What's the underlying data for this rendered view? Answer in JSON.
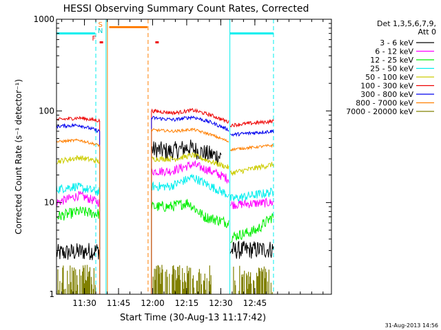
{
  "chart_data": {
    "type": "line",
    "title": "HESSI Observing Summary Count Rates, Corrected",
    "xlabel": "Start Time (30-Aug-13 11:17:42)",
    "ylabel": "Corrected Count Rate (s⁻¹ detector⁻¹)",
    "footer": "31-Aug-2013 14:56",
    "y_scale": "log",
    "ylim": [
      1,
      1000
    ],
    "x_range_min": [
      0,
      121
    ],
    "x_ticks": [
      {
        "at": 12.3,
        "label": "11:30"
      },
      {
        "at": 27.3,
        "label": "11:45"
      },
      {
        "at": 42.3,
        "label": "12:00"
      },
      {
        "at": 57.3,
        "label": "12:15"
      },
      {
        "at": 72.3,
        "label": "12:30"
      },
      {
        "at": 87.3,
        "label": "12:45"
      }
    ],
    "y_ticks": [
      {
        "value": 1,
        "label": "1"
      },
      {
        "value": 10,
        "label": "10"
      },
      {
        "value": 100,
        "label": "100"
      },
      {
        "value": 1000,
        "label": "1000"
      }
    ],
    "legend": {
      "placement": "right",
      "header1": "Det 1,3,5,6,7,9,",
      "header2": "Att 0",
      "entries": [
        {
          "label": "3 - 6 keV",
          "color": "#000000"
        },
        {
          "label": "6 - 12 keV",
          "color": "#ff00ff"
        },
        {
          "label": "12 - 25 keV",
          "color": "#00ee00"
        },
        {
          "label": "25 - 50 keV",
          "color": "#00eeee"
        },
        {
          "label": "50 - 100 keV",
          "color": "#cccc00"
        },
        {
          "label": "100 - 300 keV",
          "color": "#ee0000"
        },
        {
          "label": "300 - 800 keV",
          "color": "#0000ee"
        },
        {
          "label": "800 - 7000 keV",
          "color": "#ff7f00"
        },
        {
          "label": "7000 - 20000 keV",
          "color": "#808000"
        }
      ]
    },
    "flags": [
      {
        "label": "S",
        "color": "#ff7f00",
        "at": 19.0
      },
      {
        "label": "N",
        "color": "#00cccc",
        "at": 19.0
      },
      {
        "label": "F",
        "color": "#ee0000",
        "at": 16.5
      }
    ],
    "flag_bars": [
      {
        "color": "#00eeee",
        "x0": 0,
        "x1": 17.0,
        "y": 700
      },
      {
        "color": "#00eeee",
        "x0": 76.3,
        "x1": 95.5,
        "y": 700
      },
      {
        "color": "#ff7f00",
        "x0": 23.2,
        "x1": 40.0,
        "y": 820
      },
      {
        "color": "#ee0000",
        "x0": 19.0,
        "x1": 20.5,
        "y": 560
      },
      {
        "color": "#ee0000",
        "x0": 43.5,
        "x1": 45.0,
        "y": 560
      }
    ],
    "vlines": [
      {
        "at": 17.3,
        "color": "#00eeee",
        "style": "dashed"
      },
      {
        "at": 21.8,
        "color": "#00eeee",
        "style": "solid"
      },
      {
        "at": 22.4,
        "color": "#ff7f00",
        "style": "solid"
      },
      {
        "at": 40.3,
        "color": "#ff7f00",
        "style": "dashed"
      },
      {
        "at": 76.3,
        "color": "#00eeee",
        "style": "solid"
      },
      {
        "at": 95.5,
        "color": "#00eeee",
        "style": "dashed"
      }
    ],
    "series": [
      {
        "name": "3 - 6 keV",
        "color": "#000000",
        "noise": 0.1,
        "segments": [
          [
            0,
            2.8
          ],
          [
            19,
            3.0
          ]
        ],
        "segments2": [
          [
            42,
            38
          ],
          [
            50,
            36
          ],
          [
            58,
            40
          ],
          [
            66,
            34
          ],
          [
            72,
            32
          ]
        ],
        "segments3": [
          [
            76,
            3.0
          ],
          [
            95,
            3.1
          ]
        ],
        "end1": 19,
        "end2": 72.7,
        "end3": 96,
        "jump": [
          18.9,
          40
        ]
      },
      {
        "name": "6 - 12 keV",
        "color": "#ff00ff",
        "noise": 0.05,
        "segments": [
          [
            0,
            10
          ],
          [
            10,
            12
          ],
          [
            19,
            10
          ]
        ],
        "segments2": [
          [
            42,
            22
          ],
          [
            50,
            22
          ],
          [
            60,
            26
          ],
          [
            68,
            22
          ],
          [
            76,
            18
          ]
        ],
        "segments3": [
          [
            77,
            9.5
          ],
          [
            95,
            10
          ]
        ],
        "end1": 19,
        "end2": 76,
        "end3": 96
      },
      {
        "name": "12 - 25 keV",
        "color": "#00ee00",
        "noise": 0.06,
        "segments": [
          [
            0,
            7
          ],
          [
            10,
            8
          ],
          [
            19,
            7.5
          ]
        ],
        "segments2": [
          [
            42,
            9
          ],
          [
            50,
            9
          ],
          [
            58,
            10
          ],
          [
            65,
            7
          ],
          [
            76,
            6
          ]
        ],
        "segments3": [
          [
            77,
            4.2
          ],
          [
            88,
            5
          ],
          [
            95,
            7
          ]
        ],
        "end1": 19,
        "end2": 76,
        "end3": 96
      },
      {
        "name": "25 - 50 keV",
        "color": "#00eeee",
        "noise": 0.05,
        "segments": [
          [
            0,
            14
          ],
          [
            8,
            15
          ],
          [
            19,
            13
          ]
        ],
        "segments2": [
          [
            42,
            15
          ],
          [
            50,
            15
          ],
          [
            60,
            19
          ],
          [
            68,
            15
          ],
          [
            76,
            12
          ]
        ],
        "segments3": [
          [
            77,
            11
          ],
          [
            95,
            13
          ]
        ],
        "end1": 19,
        "end2": 76,
        "end3": 96
      },
      {
        "name": "50 - 100 keV",
        "color": "#cccc00",
        "noise": 0.03,
        "segments": [
          [
            0,
            28
          ],
          [
            10,
            31
          ],
          [
            19,
            28
          ]
        ],
        "segments2": [
          [
            42,
            30
          ],
          [
            52,
            30
          ],
          [
            60,
            33
          ],
          [
            68,
            28
          ],
          [
            76,
            24
          ]
        ],
        "segments3": [
          [
            77,
            21
          ],
          [
            95,
            26
          ]
        ],
        "end1": 19,
        "end2": 76,
        "end3": 96
      },
      {
        "name": "100 - 300 keV",
        "color": "#ee0000",
        "noise": 0.02,
        "segments": [
          [
            0,
            80
          ],
          [
            10,
            84
          ],
          [
            19,
            78
          ]
        ],
        "segments2": [
          [
            42,
            100
          ],
          [
            52,
            95
          ],
          [
            60,
            102
          ],
          [
            68,
            90
          ],
          [
            76,
            75
          ]
        ],
        "segments3": [
          [
            77,
            70
          ],
          [
            95,
            77
          ]
        ],
        "end1": 19,
        "end2": 76,
        "end3": 96
      },
      {
        "name": "300 - 800 keV",
        "color": "#0000ee",
        "noise": 0.02,
        "segments": [
          [
            0,
            68
          ],
          [
            10,
            70
          ],
          [
            19,
            60
          ]
        ],
        "segments2": [
          [
            42,
            84
          ],
          [
            52,
            80
          ],
          [
            60,
            86
          ],
          [
            68,
            75
          ],
          [
            76,
            62
          ]
        ],
        "segments3": [
          [
            77,
            55
          ],
          [
            95,
            60
          ]
        ],
        "end1": 19,
        "end2": 76,
        "end3": 96
      },
      {
        "name": "800 - 7000 keV",
        "color": "#ff7f00",
        "noise": 0.015,
        "segments": [
          [
            0,
            46
          ],
          [
            10,
            48
          ],
          [
            19,
            42
          ]
        ],
        "segments2": [
          [
            42,
            62
          ],
          [
            52,
            60
          ],
          [
            60,
            63
          ],
          [
            68,
            55
          ],
          [
            76,
            46
          ]
        ],
        "segments3": [
          [
            77,
            38
          ],
          [
            95,
            42
          ]
        ],
        "end1": 19,
        "end2": 76,
        "end3": 96
      },
      {
        "name": "7000 - 20000 keV",
        "color": "#808000",
        "noise": 0.0,
        "segments": [
          [
            0,
            1
          ],
          [
            19,
            1
          ]
        ],
        "segments2": [
          [
            42,
            1
          ],
          [
            76,
            1
          ]
        ],
        "segments3": [
          [
            77,
            1
          ],
          [
            95,
            1
          ]
        ],
        "end1": 19,
        "end2": 76,
        "end3": 96,
        "olive": true
      }
    ]
  }
}
